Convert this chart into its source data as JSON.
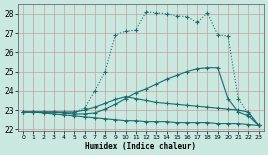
{
  "xlabel": "Humidex (Indice chaleur)",
  "xlim": [
    -0.5,
    23.5
  ],
  "ylim": [
    21.9,
    28.5
  ],
  "yticks": [
    22,
    23,
    24,
    25,
    26,
    27,
    28
  ],
  "xticks": [
    0,
    1,
    2,
    3,
    4,
    5,
    6,
    7,
    8,
    9,
    10,
    11,
    12,
    13,
    14,
    15,
    16,
    17,
    18,
    19,
    20,
    21,
    22,
    23
  ],
  "bg_color": "#c8e8e0",
  "grid_color": "#adc8c8",
  "line_color": "#1a6b6b",
  "series": [
    {
      "x": [
        0,
        1,
        2,
        3,
        4,
        5,
        6,
        7,
        8,
        9,
        10,
        11,
        12,
        13,
        14,
        15,
        16,
        17,
        18,
        19,
        20,
        21,
        22,
        23
      ],
      "y": [
        22.9,
        22.9,
        22.85,
        22.8,
        22.75,
        22.7,
        22.65,
        22.6,
        22.55,
        22.5,
        22.45,
        22.45,
        22.4,
        22.4,
        22.4,
        22.35,
        22.35,
        22.35,
        22.35,
        22.3,
        22.3,
        22.3,
        22.25,
        22.2
      ]
    },
    {
      "x": [
        0,
        1,
        2,
        3,
        4,
        5,
        6,
        7,
        8,
        9,
        10,
        11,
        12,
        13,
        14,
        15,
        16,
        17,
        18,
        19,
        20,
        21,
        22,
        23
      ],
      "y": [
        22.9,
        22.9,
        22.9,
        22.9,
        22.85,
        22.8,
        22.8,
        22.85,
        23.05,
        23.3,
        23.6,
        23.9,
        24.1,
        24.35,
        24.6,
        24.8,
        25.0,
        25.15,
        25.2,
        25.2,
        23.6,
        22.9,
        22.7,
        22.2
      ]
    },
    {
      "x": [
        0,
        1,
        2,
        3,
        4,
        5,
        6,
        7,
        8,
        9,
        10,
        11,
        12,
        13,
        14,
        15,
        16,
        17,
        18,
        19,
        20,
        21,
        22,
        23
      ],
      "y": [
        22.9,
        22.9,
        22.9,
        22.9,
        22.9,
        22.9,
        23.0,
        23.15,
        23.35,
        23.55,
        23.7,
        23.6,
        23.5,
        23.4,
        23.35,
        23.3,
        23.25,
        23.2,
        23.15,
        23.1,
        23.05,
        23.0,
        22.9,
        22.2
      ]
    },
    {
      "x": [
        0,
        1,
        2,
        3,
        4,
        5,
        6,
        7,
        8,
        9,
        10,
        11,
        12,
        13,
        14,
        15,
        16,
        17,
        18,
        19,
        20,
        21,
        22,
        23
      ],
      "y": [
        22.9,
        22.9,
        22.9,
        22.9,
        22.9,
        22.9,
        23.1,
        24.0,
        25.0,
        26.9,
        27.1,
        27.15,
        28.1,
        28.05,
        28.0,
        27.9,
        27.85,
        27.55,
        28.05,
        26.9,
        26.85,
        23.6,
        22.8,
        22.2
      ]
    }
  ]
}
